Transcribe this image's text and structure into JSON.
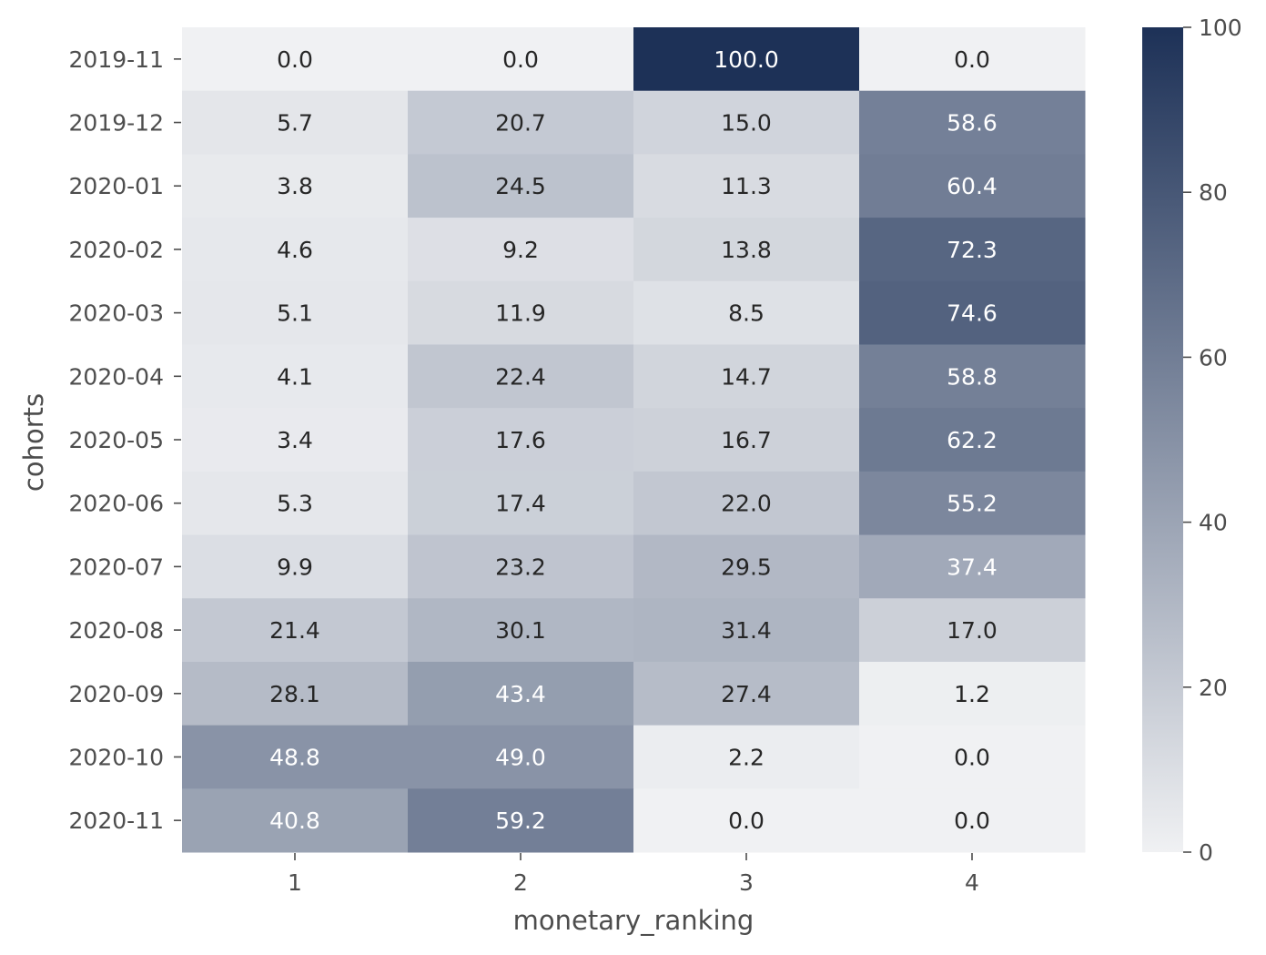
{
  "chart_data": {
    "type": "heatmap",
    "xlabel": "monetary_ranking",
    "ylabel": "cohorts",
    "columns": [
      "1",
      "2",
      "3",
      "4"
    ],
    "rows": [
      "2019-11",
      "2019-12",
      "2020-01",
      "2020-02",
      "2020-03",
      "2020-04",
      "2020-05",
      "2020-06",
      "2020-07",
      "2020-08",
      "2020-09",
      "2020-10",
      "2020-11"
    ],
    "values": [
      [
        0.0,
        0.0,
        100.0,
        0.0
      ],
      [
        5.7,
        20.7,
        15.0,
        58.6
      ],
      [
        3.8,
        24.5,
        11.3,
        60.4
      ],
      [
        4.6,
        9.2,
        13.8,
        72.3
      ],
      [
        5.1,
        11.9,
        8.5,
        74.6
      ],
      [
        4.1,
        22.4,
        14.7,
        58.8
      ],
      [
        3.4,
        17.6,
        16.7,
        62.2
      ],
      [
        5.3,
        17.4,
        22.0,
        55.2
      ],
      [
        9.9,
        23.2,
        29.5,
        37.4
      ],
      [
        21.4,
        30.1,
        31.4,
        17.0
      ],
      [
        28.1,
        43.4,
        27.4,
        1.2
      ],
      [
        48.8,
        49.0,
        2.2,
        0.0
      ],
      [
        40.8,
        59.2,
        0.0,
        0.0
      ]
    ],
    "value_format": "1 decimal",
    "colorbar": {
      "min": 0,
      "max": 100,
      "ticks": [
        "0",
        "20",
        "40",
        "60",
        "80",
        "100"
      ],
      "color_low": "#f0f1f3",
      "color_high": "#1d3157"
    },
    "text_color_dark": "#262626",
    "text_color_light": "#ffffff",
    "grid": false
  }
}
